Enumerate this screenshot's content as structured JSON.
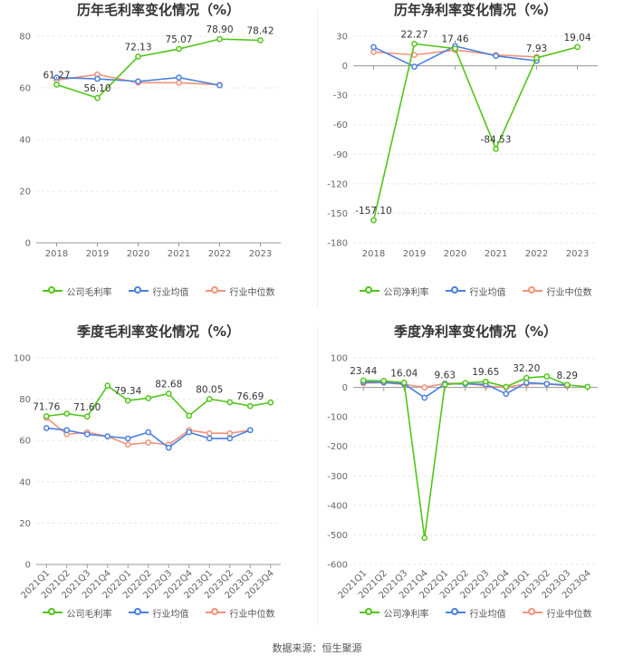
{
  "colors": {
    "company": "#52c41a",
    "avg": "#4a7fe0",
    "median": "#f3927a",
    "grid": "#e8e8e8",
    "axis": "#666666",
    "label": "#333333"
  },
  "legend": {
    "avg": "行业均值",
    "median": "行业中位数"
  },
  "footer": "数据来源：恒生聚源",
  "chart_data": [
    {
      "type": "line",
      "title": "历年毛利率变化情况（%）",
      "legend_company": "公司毛利率",
      "categories": [
        "2018",
        "2019",
        "2020",
        "2021",
        "2022",
        "2023"
      ],
      "ylim": [
        0,
        80
      ],
      "yticks": [
        0,
        20,
        40,
        60,
        80
      ],
      "rotate_x": false,
      "series": [
        {
          "name": "公司毛利率",
          "values": [
            61.27,
            56.1,
            72.13,
            75.07,
            78.9,
            78.42
          ],
          "labels": [
            "61.27",
            "56.10",
            "72.13",
            "75.07",
            "78.90",
            "78.42"
          ]
        },
        {
          "name": "行业均值",
          "values": [
            64.0,
            63.5,
            62.5,
            64.0,
            61.0,
            null
          ]
        },
        {
          "name": "行业中位数",
          "values": [
            63.0,
            65.2,
            62.0,
            62.0,
            61.2,
            null
          ]
        }
      ]
    },
    {
      "type": "line",
      "title": "历年净利率变化情况（%）",
      "legend_company": "公司净利率",
      "categories": [
        "2018",
        "2019",
        "2020",
        "2021",
        "2022",
        "2023"
      ],
      "ylim": [
        -180,
        30
      ],
      "yticks": [
        -180,
        -150,
        -120,
        -90,
        -60,
        -30,
        0,
        30
      ],
      "rotate_x": false,
      "series": [
        {
          "name": "公司净利率",
          "values": [
            -157.1,
            22.27,
            17.46,
            -84.53,
            7.93,
            19.04
          ],
          "labels": [
            "-157.10",
            "22.27",
            "17.46",
            "-84.53",
            "7.93",
            "19.04"
          ]
        },
        {
          "name": "行业均值",
          "values": [
            19.0,
            -1.0,
            20.0,
            10.0,
            5.0,
            null
          ]
        },
        {
          "name": "行业中位数",
          "values": [
            14.0,
            11.0,
            16.0,
            11.0,
            9.0,
            null
          ]
        }
      ]
    },
    {
      "type": "line",
      "title": "季度毛利率变化情况（%）",
      "legend_company": "公司毛利率",
      "categories": [
        "2021Q1",
        "2021Q2",
        "2021Q3",
        "2021Q4",
        "2022Q1",
        "2022Q2",
        "2022Q3",
        "2022Q4",
        "2023Q1",
        "2023Q2",
        "2023Q3",
        "2023Q4"
      ],
      "ylim": [
        0,
        100
      ],
      "yticks": [
        0,
        20,
        40,
        60,
        80,
        100
      ],
      "rotate_x": true,
      "series": [
        {
          "name": "公司毛利率",
          "values": [
            71.76,
            73.0,
            71.6,
            86.5,
            79.34,
            80.5,
            82.68,
            72.0,
            80.05,
            78.5,
            76.69,
            78.4
          ],
          "labels": [
            "71.76",
            "",
            "71.60",
            "",
            "79.34",
            "",
            "82.68",
            "",
            "80.05",
            "",
            "76.69",
            ""
          ]
        },
        {
          "name": "行业均值",
          "values": [
            66.0,
            65.0,
            63.0,
            62.0,
            61.0,
            64.0,
            56.5,
            64.0,
            61.0,
            61.0,
            65.0,
            null
          ]
        },
        {
          "name": "行业中位数",
          "values": [
            71.0,
            63.0,
            64.0,
            62.0,
            58.0,
            59.0,
            58.0,
            65.0,
            63.5,
            63.5,
            65.0,
            null
          ]
        }
      ]
    },
    {
      "type": "line",
      "title": "季度净利率变化情况（%）",
      "legend_company": "公司净利率",
      "categories": [
        "2021Q1",
        "2021Q2",
        "2021Q3",
        "2021Q4",
        "2022Q1",
        "2022Q2",
        "2022Q3",
        "2022Q4",
        "2023Q1",
        "2023Q2",
        "2023Q3",
        "2023Q4"
      ],
      "ylim": [
        -600,
        100
      ],
      "yticks": [
        -600,
        -500,
        -400,
        -300,
        -200,
        -100,
        0,
        100
      ],
      "rotate_x": true,
      "series": [
        {
          "name": "公司净利率",
          "values": [
            23.44,
            22.0,
            16.04,
            -510.0,
            9.63,
            15.0,
            19.65,
            2.0,
            32.2,
            37.0,
            8.29,
            2.0
          ],
          "labels": [
            "23.44",
            "",
            "16.04",
            "",
            "9.63",
            "",
            "19.65",
            "",
            "32.20",
            "",
            "8.29",
            ""
          ]
        },
        {
          "name": "行业均值",
          "values": [
            18.0,
            17.0,
            12.0,
            -35.0,
            12.0,
            12.0,
            10.0,
            -22.0,
            16.0,
            12.0,
            8.0,
            null
          ]
        },
        {
          "name": "行业中位数",
          "values": [
            14.0,
            16.0,
            10.0,
            0.0,
            13.0,
            14.0,
            5.0,
            0.0,
            12.0,
            12.0,
            5.0,
            null
          ]
        }
      ]
    }
  ]
}
